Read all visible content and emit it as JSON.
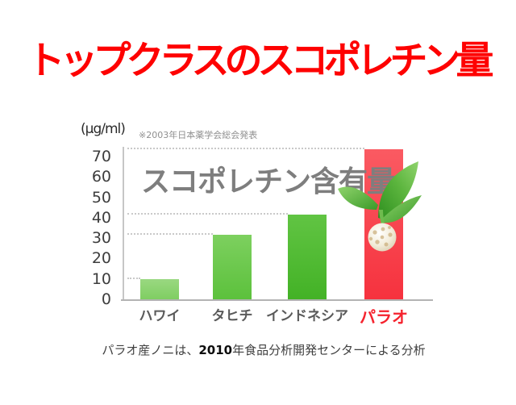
{
  "slide": {
    "title": "トップクラスのスコポレチン量",
    "caption": {
      "prefix": "パラオ産ノニは、",
      "year": "2010",
      "suffix": "年食品分析開発センターによる分析"
    }
  },
  "chart_data": {
    "type": "bar",
    "title": "スコポレチン含有量",
    "unit_label": "(μg/ml)",
    "source_note": "※2003年日本薬学会総会発表",
    "categories": [
      "ハワイ",
      "タヒチ",
      "インドネシア",
      "パラオ"
    ],
    "values": [
      10,
      31.5,
      41.5,
      73.5
    ],
    "yticks": [
      0,
      10,
      20,
      30,
      40,
      50,
      60,
      70
    ],
    "ylim": [
      0,
      75
    ],
    "grid": "dotted leader line from y-axis to each bar top",
    "legend": "none",
    "bar_gradients": [
      [
        "#9ad881",
        "#7fce62"
      ],
      [
        "#7dd05f",
        "#5cc13c"
      ],
      [
        "#61c443",
        "#43b226"
      ],
      [
        "#fa5a62",
        "#f6323e"
      ]
    ],
    "highlight_index": 3,
    "highlight_color": "#f5232e",
    "axis_color": "#c6c6c6",
    "label_color": "#5a5a5a",
    "title_color": "#7e7e7e"
  },
  "decoration": {
    "noni_fruit_icon": "white noni fruit with beige spots and green leaves overlapping the Palau bar"
  },
  "colors": {
    "title_red": "#fe0101",
    "background": "#ffffff"
  }
}
